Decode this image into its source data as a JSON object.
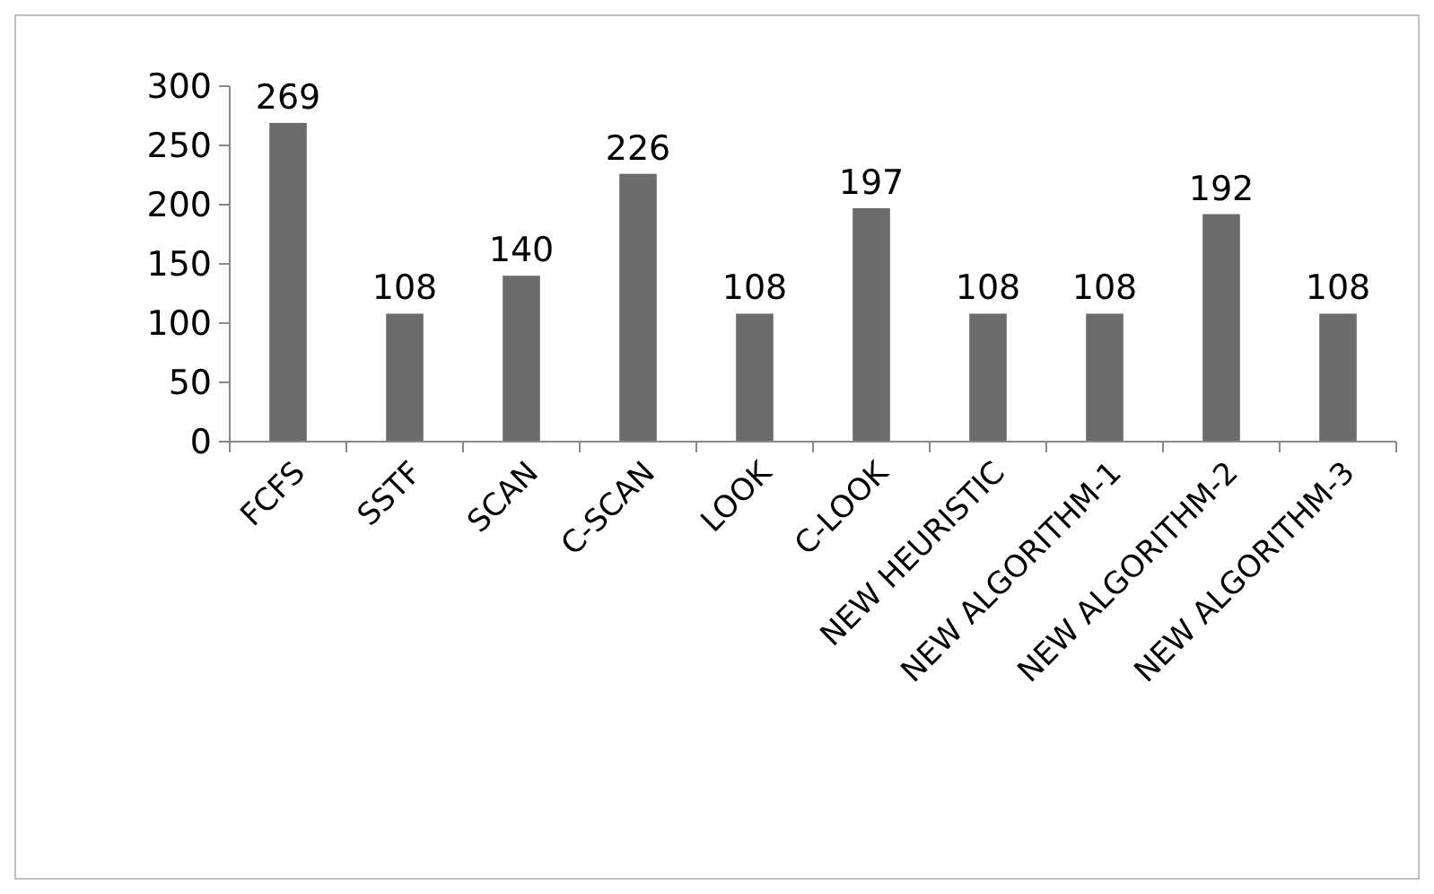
{
  "chart_data": {
    "type": "bar",
    "categories": [
      "FCFS",
      "SSTF",
      "SCAN",
      "C-SCAN",
      "LOOK",
      "C-LOOK",
      "NEW HEURISTIC",
      "NEW ALGORITHM-1",
      "NEW ALGORITHM-2",
      "NEW ALGORITHM-3"
    ],
    "values": [
      269,
      108,
      140,
      226,
      108,
      197,
      108,
      108,
      192,
      108
    ],
    "color": "#6b6b6b",
    "ylim": [
      0,
      300
    ],
    "yticks": [
      0,
      50,
      100,
      150,
      200,
      250,
      300
    ],
    "grid": false,
    "data_labels": true
  }
}
